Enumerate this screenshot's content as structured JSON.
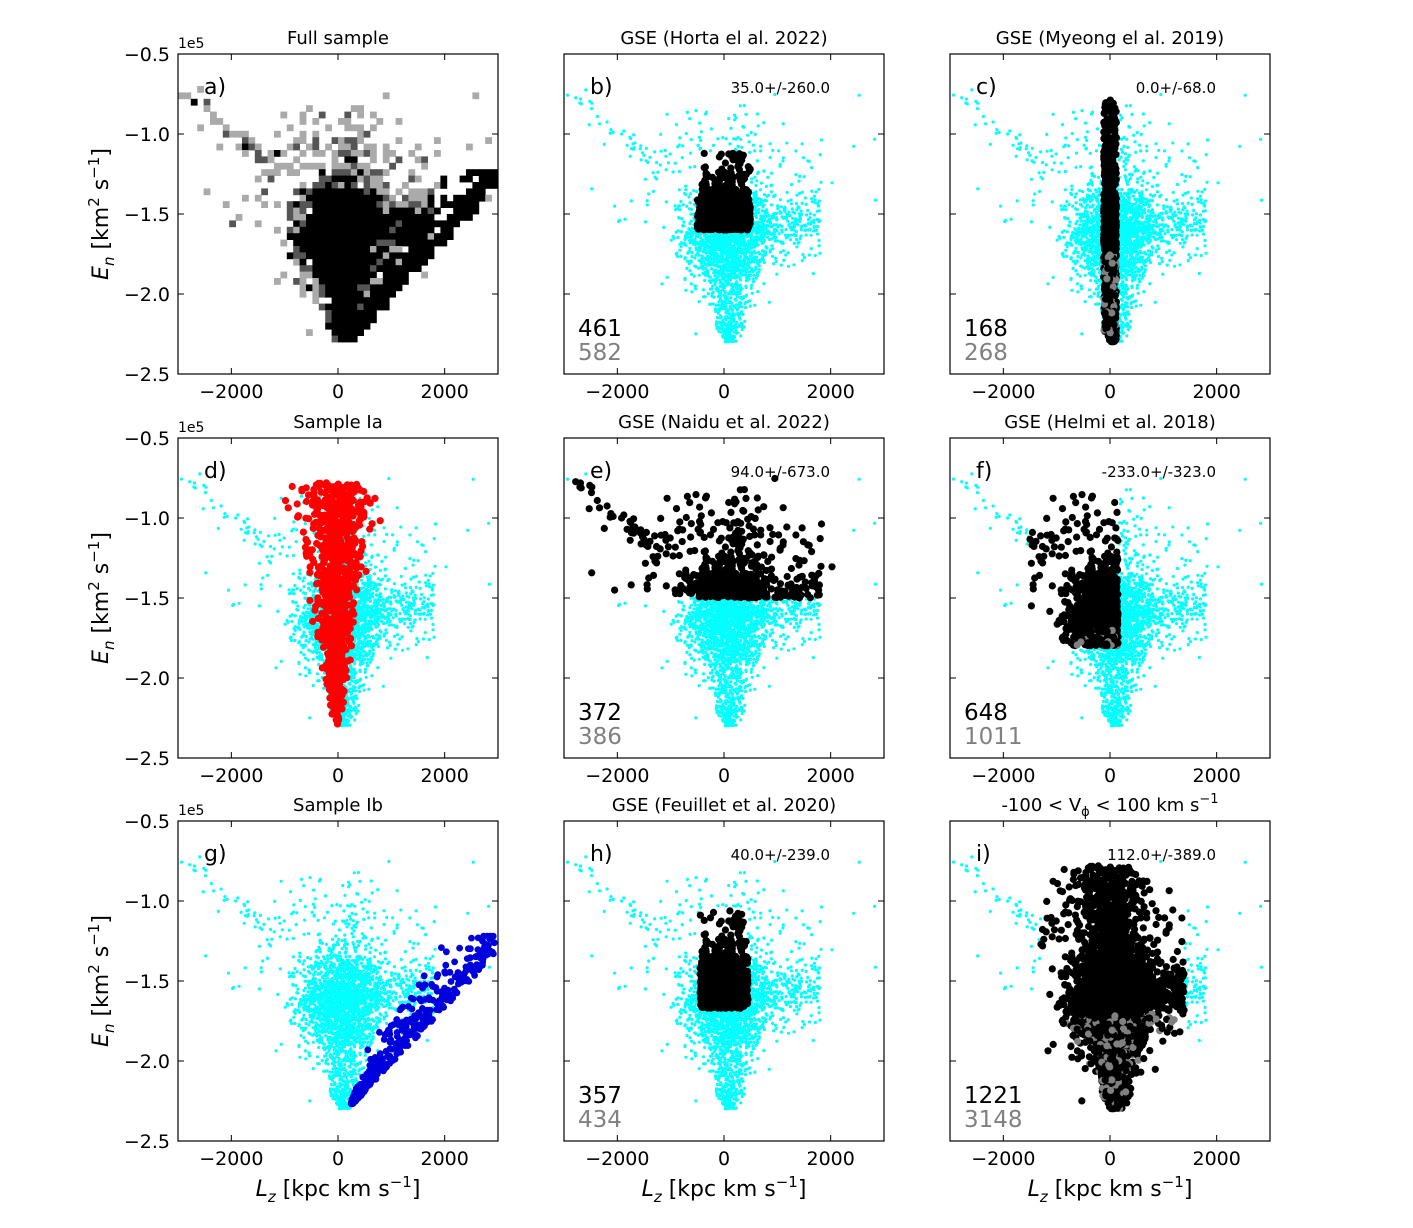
{
  "figure": {
    "x_axis_label_base": "L",
    "x_axis_label_sub": "z",
    "x_axis_label_unit": " [kpc km s",
    "x_axis_label_exp": "−1",
    "x_axis_label_end": "]",
    "y_axis_label_base": "E",
    "y_axis_label_sub": "n",
    "y_axis_label_unit": " [km",
    "y_axis_label_exp1": "2",
    "y_axis_label_mid": " s",
    "y_axis_label_exp2": "−1",
    "y_axis_label_end": "]",
    "y_offset_label": "1e5",
    "x_ticks": [
      -2000,
      0,
      2000
    ],
    "x_tick_labels": [
      "−2000",
      "0",
      "2000"
    ],
    "y_ticks": [
      -0.5,
      -1.0,
      -1.5,
      -2.0,
      -2.5
    ],
    "y_tick_labels": [
      "−0.5",
      "−1.0",
      "−1.5",
      "−2.0",
      "−2.5"
    ],
    "xlim": [
      -3000,
      3000
    ],
    "ylim": [
      -2.5,
      -0.5
    ],
    "colors": {
      "background": "#00ffff",
      "selected": "#000000",
      "parent": "#808080",
      "sample_ia": "#ff0000",
      "sample_ib": "#0000dd"
    }
  },
  "chart_data": [
    {
      "id": "a",
      "type": "heatmap",
      "panel_label": "a)",
      "title": "Full sample",
      "stat": "",
      "count_main": "",
      "count_total": ""
    },
    {
      "id": "b",
      "type": "scatter",
      "panel_label": "b)",
      "title": "GSE (Horta el al. 2022)",
      "stat": "35.0+/-260.0",
      "count_main": "461",
      "count_total": "582",
      "selection": {
        "lz_range": [
          -500,
          500
        ],
        "en_range": [
          -1.6,
          -1.12
        ]
      }
    },
    {
      "id": "c",
      "type": "scatter",
      "panel_label": "c)",
      "title": "GSE (Myeong el al. 2019)",
      "stat": "0.0+/-68.0",
      "count_main": "168",
      "count_total": "268",
      "selection": {
        "lz_range": [
          -120,
          120
        ],
        "en_range": [
          -2.3,
          -0.8
        ]
      }
    },
    {
      "id": "d",
      "type": "scatter",
      "panel_label": "d)",
      "title": "Sample Ia",
      "stat": "",
      "count_main": "",
      "count_total": ""
    },
    {
      "id": "e",
      "type": "scatter",
      "panel_label": "e)",
      "title": "GSE (Naidu et al. 2022)",
      "stat": "94.0+/-673.0",
      "count_main": "372",
      "count_total": "386",
      "selection": {
        "lz_range": [
          -2900,
          2200
        ],
        "en_range": [
          -1.5,
          -0.73
        ]
      }
    },
    {
      "id": "f",
      "type": "scatter",
      "panel_label": "f)",
      "title": "GSE (Helmi et al. 2018)",
      "stat": "-233.0+/-323.0",
      "count_main": "648",
      "count_total": "1011",
      "selection": {
        "lz_range": [
          -1500,
          150
        ],
        "en_range": [
          -1.8,
          -0.78
        ]
      }
    },
    {
      "id": "g",
      "type": "scatter",
      "panel_label": "g)",
      "title": "Sample Ib",
      "stat": "",
      "count_main": "",
      "count_total": ""
    },
    {
      "id": "h",
      "type": "scatter",
      "panel_label": "h)",
      "title": "GSE (Feuillet et al. 2020)",
      "stat": "40.0+/-239.0",
      "count_main": "357",
      "count_total": "434",
      "selection": {
        "lz_range": [
          -450,
          450
        ],
        "en_range": [
          -1.67,
          -1.05
        ]
      }
    },
    {
      "id": "i",
      "type": "scatter",
      "panel_label": "i)",
      "title_parts": [
        "-100 < V",
        "ϕ",
        " < 100 km s",
        "−1"
      ],
      "stat": "112.0+/-389.0",
      "count_main": "1221",
      "count_total": "3148",
      "selection": {
        "lz_range": [
          -1300,
          1400
        ],
        "en_range": [
          -2.4,
          -0.78
        ]
      }
    }
  ]
}
